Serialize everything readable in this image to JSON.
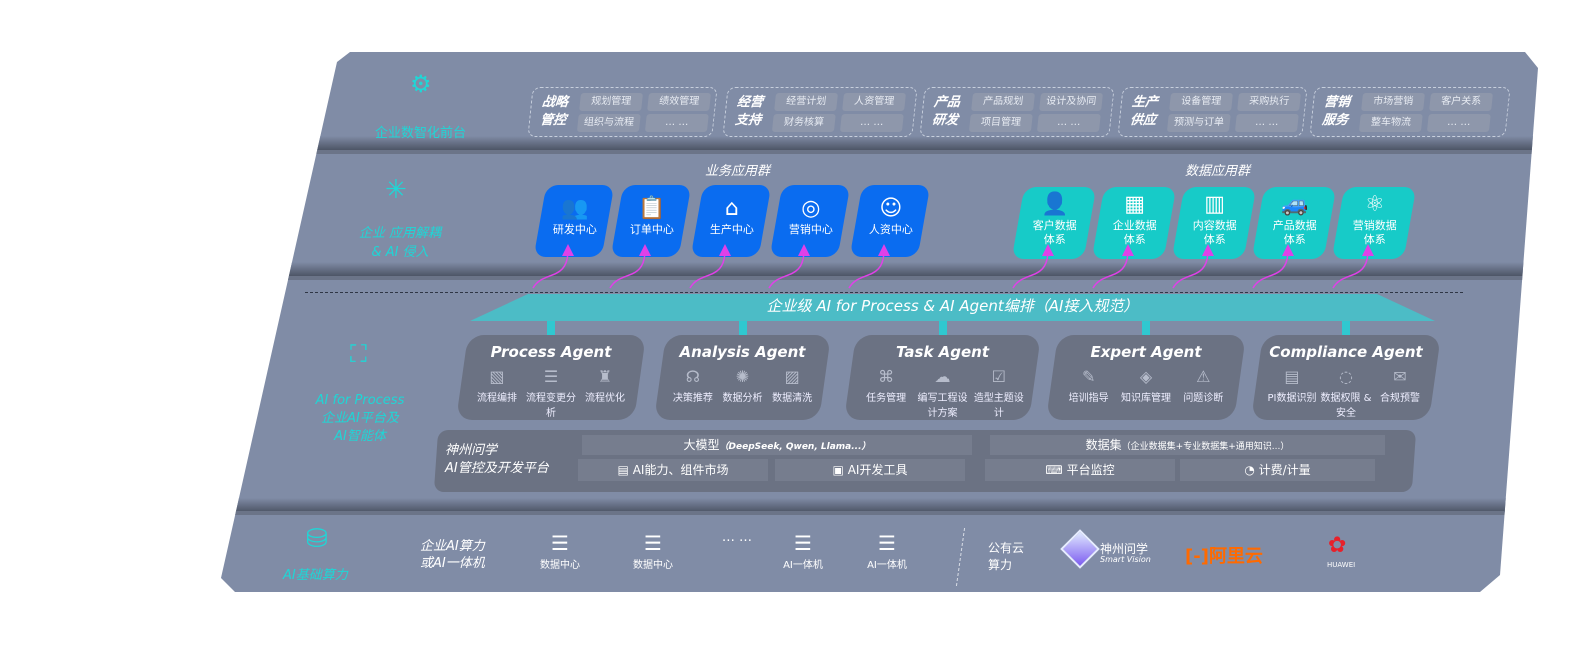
{
  "layers": {
    "front": "企业数智化前台",
    "app": "企业 应用解耦 & AI 侵入",
    "platform": [
      "AI for Process",
      "企业AI平台及",
      "AI智能体"
    ],
    "infra": "AI基础算力"
  },
  "front_groups": [
    {
      "title": "战略管控",
      "items": [
        "规划管理",
        "绩效管理",
        "组织与流程",
        "… …"
      ]
    },
    {
      "title": "经营支持",
      "items": [
        "经营计划",
        "人资管理",
        "财务核算",
        "… …"
      ]
    },
    {
      "title": "产品研发",
      "items": [
        "产品规划",
        "设计及协同",
        "项目管理",
        "… …"
      ]
    },
    {
      "title": "生产供应",
      "items": [
        "设备管理",
        "采购执行",
        "预测与订单",
        "… …"
      ]
    },
    {
      "title": "营销服务",
      "items": [
        "市场营销",
        "客户关系",
        "整车物流",
        "… …"
      ]
    }
  ],
  "business_group": {
    "title": "业务应用群",
    "tiles": [
      {
        "label": "研发中心",
        "icon": "team-icon"
      },
      {
        "label": "订单中心",
        "icon": "clipboard-icon"
      },
      {
        "label": "生产中心",
        "icon": "factory-icon"
      },
      {
        "label": "营销中心",
        "icon": "target-icon"
      },
      {
        "label": "人资中心",
        "icon": "people-icon"
      }
    ]
  },
  "data_group": {
    "title": "数据应用群",
    "tiles": [
      {
        "label": "客户数据体系",
        "icon": "user-icon"
      },
      {
        "label": "企业数据体系",
        "icon": "building-icon"
      },
      {
        "label": "内容数据体系",
        "icon": "books-icon"
      },
      {
        "label": "产品数据体系",
        "icon": "car-icon"
      },
      {
        "label": "营销数据体系",
        "icon": "atom-icon"
      }
    ]
  },
  "banner": "企业级 AI for Process & AI Agent编排（AI接入规范）",
  "agents": [
    {
      "name": "Process Agent",
      "items": [
        "流程编排",
        "流程变更分析",
        "流程优化"
      ]
    },
    {
      "name": "Analysis Agent",
      "items": [
        "决策推荐",
        "数据分析",
        "数据清洗"
      ]
    },
    {
      "name": "Task Agent",
      "items": [
        "任务管理",
        "编写工程设计方案",
        "造型主题设计"
      ]
    },
    {
      "name": "Expert Agent",
      "items": [
        "培训指导",
        "知识库管理",
        "问题诊断"
      ]
    },
    {
      "name": "Compliance Agent",
      "items": [
        "PI数据识别",
        "数据权限 & 安全",
        "合规预警"
      ]
    }
  ],
  "platform": {
    "title": [
      "神州问学",
      "AI管控及开发平台"
    ],
    "model": "大模型",
    "model_note": "（DeepSeek, Qwen, Llama...）",
    "dataset": "数据集",
    "dataset_note": "（企业数据集+专业数据集+通用知识...）",
    "market": "AI能力、组件市场",
    "devtools": "AI开发工具",
    "monitor": "平台监控",
    "billing": "计费/计量"
  },
  "infra": {
    "enterprise": [
      "企业AI算力",
      "或AI一体机"
    ],
    "nodes": [
      "数据中心",
      "数据中心",
      "… …",
      "AI一体机",
      "AI一体机"
    ],
    "public": [
      "公有云",
      "算力"
    ],
    "vendors": {
      "smartvision": "神州问学",
      "smartvision_en": "Smart Vision",
      "aliyun": "阿里云",
      "huawei": "HUAWEI"
    }
  },
  "colors": {
    "board": "#808ca6",
    "business_tile": "#0a6cf0",
    "data_tile": "#17cbc8",
    "accent": "#1fd6d6",
    "arrow": "#e040e8",
    "aliyun": "#ff6a00",
    "huawei": "#e8202a"
  }
}
